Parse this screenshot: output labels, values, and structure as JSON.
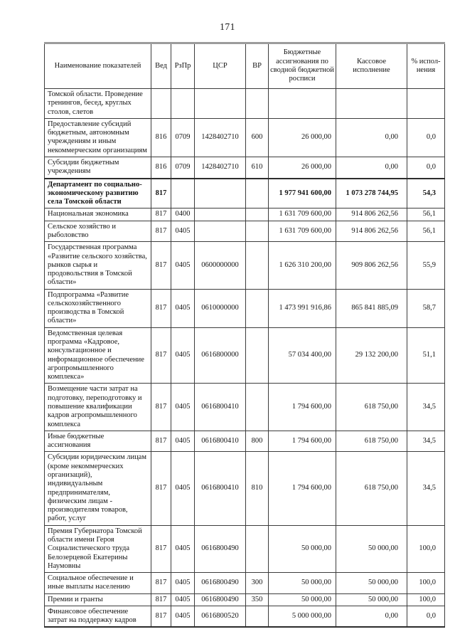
{
  "page": {
    "number": "171"
  },
  "table": {
    "columns": [
      {
        "key": "name",
        "label": "Наименование показателей"
      },
      {
        "key": "ved",
        "label": "Вед"
      },
      {
        "key": "rzpr",
        "label": "РзПр"
      },
      {
        "key": "csr",
        "label": "ЦСР"
      },
      {
        "key": "vr",
        "label": "ВР"
      },
      {
        "key": "budget",
        "label": "Бюджетные ассигнования по сводной бюджетной росписи"
      },
      {
        "key": "cash",
        "label": "Кассовое исполнение"
      },
      {
        "key": "percent",
        "label": "% испол-нения"
      }
    ],
    "rows": [
      {
        "name": "Томской области. Проведение тренингов, бесед, круглых столов, слетов",
        "ved": "",
        "rzpr": "",
        "csr": "",
        "vr": "",
        "budget": "",
        "cash": "",
        "percent": "",
        "bold": false
      },
      {
        "name": "Предоставление субсидий бюджетным, автономным учреждениям и иным некоммерческим организациям",
        "ved": "816",
        "rzpr": "0709",
        "csr": "1428402710",
        "vr": "600",
        "budget": "26 000,00",
        "cash": "0,00",
        "percent": "0,0",
        "bold": false
      },
      {
        "name": "Субсидии бюджетным учреждениям",
        "ved": "816",
        "rzpr": "0709",
        "csr": "1428402710",
        "vr": "610",
        "budget": "26 000,00",
        "cash": "0,00",
        "percent": "0,0",
        "bold": false
      },
      {
        "name": "Департамент по социально-экономическому развитию села Томской области",
        "ved": "817",
        "rzpr": "",
        "csr": "",
        "vr": "",
        "budget": "1 977 941 600,00",
        "cash": "1 073 278 744,95",
        "percent": "54,3",
        "bold": true
      },
      {
        "name": "Национальная экономика",
        "ved": "817",
        "rzpr": "0400",
        "csr": "",
        "vr": "",
        "budget": "1 631 709 600,00",
        "cash": "914 806 262,56",
        "percent": "56,1",
        "bold": false
      },
      {
        "name": "Сельское хозяйство и рыболовство",
        "ved": "817",
        "rzpr": "0405",
        "csr": "",
        "vr": "",
        "budget": "1 631 709 600,00",
        "cash": "914 806 262,56",
        "percent": "56,1",
        "bold": false
      },
      {
        "name": "Государственная программа «Развитие сельского хозяйства, рынков сырья и продовольствия в Томской области»",
        "ved": "817",
        "rzpr": "0405",
        "csr": "0600000000",
        "vr": "",
        "budget": "1 626 310 200,00",
        "cash": "909 806 262,56",
        "percent": "55,9",
        "bold": false
      },
      {
        "name": "Подпрограмма «Развитие сельскохозяйственного производства в Томской области»",
        "ved": "817",
        "rzpr": "0405",
        "csr": "0610000000",
        "vr": "",
        "budget": "1 473 991 916,86",
        "cash": "865 841 885,09",
        "percent": "58,7",
        "bold": false
      },
      {
        "name": "Ведомственная целевая программа «Кадровое, консультационное и информационное обеспечение агропромышленного комплекса»",
        "ved": "817",
        "rzpr": "0405",
        "csr": "0616800000",
        "vr": "",
        "budget": "57 034 400,00",
        "cash": "29 132 200,00",
        "percent": "51,1",
        "bold": false
      },
      {
        "name": "Возмещение части затрат на подготовку, переподготовку и повышение квалификации кадров агропромышленного комплекса",
        "ved": "817",
        "rzpr": "0405",
        "csr": "0616800410",
        "vr": "",
        "budget": "1 794 600,00",
        "cash": "618 750,00",
        "percent": "34,5",
        "bold": false
      },
      {
        "name": "Иные бюджетные ассигнования",
        "ved": "817",
        "rzpr": "0405",
        "csr": "0616800410",
        "vr": "800",
        "budget": "1 794 600,00",
        "cash": "618 750,00",
        "percent": "34,5",
        "bold": false
      },
      {
        "name": "Субсидии юридическим лицам (кроме некоммерческих организаций), индивидуальным предпринимателям, физическим лицам - производителям товаров, работ, услуг",
        "ved": "817",
        "rzpr": "0405",
        "csr": "0616800410",
        "vr": "810",
        "budget": "1 794 600,00",
        "cash": "618 750,00",
        "percent": "34,5",
        "bold": false
      },
      {
        "name": "Премия Губернатора Томской области имени Героя Социалистического труда Белозерцевой Екатерины Наумовны",
        "ved": "817",
        "rzpr": "0405",
        "csr": "0616800490",
        "vr": "",
        "budget": "50 000,00",
        "cash": "50 000,00",
        "percent": "100,0",
        "bold": false
      },
      {
        "name": "Социальное обеспечение и иные выплаты населению",
        "ved": "817",
        "rzpr": "0405",
        "csr": "0616800490",
        "vr": "300",
        "budget": "50 000,00",
        "cash": "50 000,00",
        "percent": "100,0",
        "bold": false
      },
      {
        "name": "Премии и гранты",
        "ved": "817",
        "rzpr": "0405",
        "csr": "0616800490",
        "vr": "350",
        "budget": "50 000,00",
        "cash": "50 000,00",
        "percent": "100,0",
        "bold": false
      },
      {
        "name": "Финансовое обеспечение затрат на поддержку кадров",
        "ved": "817",
        "rzpr": "0405",
        "csr": "0616800520",
        "vr": "",
        "budget": "5 000 000,00",
        "cash": "0,00",
        "percent": "0,0",
        "bold": false
      }
    ]
  }
}
